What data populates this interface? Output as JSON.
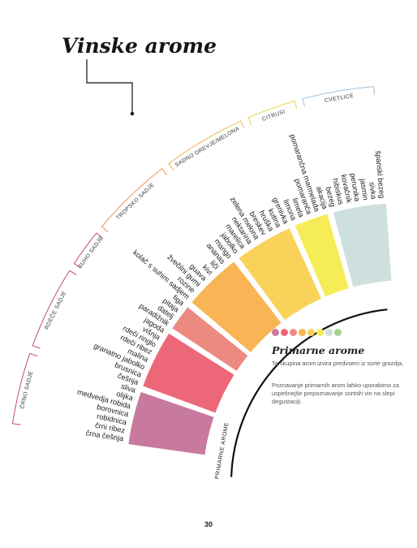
{
  "title": "Vinske arome",
  "center_label": "PRIMARNE AROME",
  "legend": {
    "title": "Primarne arome",
    "p1": "Ta skupina arom izvira predvsem iz sorte grozdja.",
    "p2": "Poznavanje primarnih arom lahko uporabimo za uspešnejše prepoznavanje sortnih vin na slepi degustaciji.",
    "dot_colors": [
      "#c87a9e",
      "#ec6878",
      "#ec8a82",
      "#f9b456",
      "#f9d25a",
      "#f6ec55",
      "#cde0dd",
      "#a8d08c"
    ]
  },
  "page_number": "30",
  "groups": [
    {
      "name": "ČRNO SADJE",
      "color": "#c87a9e",
      "bracket_color": "#c84d5e",
      "items": [
        "črna češnja",
        "črni ribez",
        "robidnica",
        "borovnica",
        "medvedja robida",
        "olijka",
        "sliva"
      ]
    },
    {
      "name": "RDEČE SADJE",
      "color": "#ec6878",
      "bracket_color": "#c84d5e",
      "items": [
        "češnja",
        "brusnica",
        "granatno jabolko",
        "malina",
        "rdeči ribez",
        "rdeči ringlo",
        "višnja",
        "jagoda"
      ]
    },
    {
      "name": "SUHO SADJE",
      "color": "#ec8a82",
      "bracket_color": "#c84d5e",
      "items": [
        "paradižnik",
        "datelj",
        "pitaja",
        "figa"
      ]
    },
    {
      "name": "TROPSKO SADJE",
      "color": "#f9b456",
      "bracket_color": "#f08c52",
      "items": [
        "kolač s suhim sadjem",
        "rozine",
        "žvečilni gumi",
        "guava",
        "kivi",
        "liči",
        "ananas",
        "mango"
      ]
    },
    {
      "name": "SADNO DREVJE/MELONA",
      "color": "#f9d25a",
      "bracket_color": "#f0b84a",
      "items": [
        "jabolko",
        "marelica",
        "nektarina",
        "zelena melona",
        "breskev",
        "hruška",
        "kutina",
        "grenivka"
      ]
    },
    {
      "name": "CITRUSI",
      "color": "#f6ec55",
      "bracket_color": "#e8d84a",
      "items": [
        "limona",
        "limeta",
        "pomaranča",
        "pomarančna marmelada",
        "akacija"
      ]
    },
    {
      "name": "CVETLICE",
      "color": "#cde0dd",
      "bracket_color": "#9cc4e0",
      "items": [
        "bezeg",
        "hibiskus",
        "kovačnik",
        "perunika",
        "jasmin",
        "sivka",
        "španski bezeg"
      ]
    }
  ]
}
